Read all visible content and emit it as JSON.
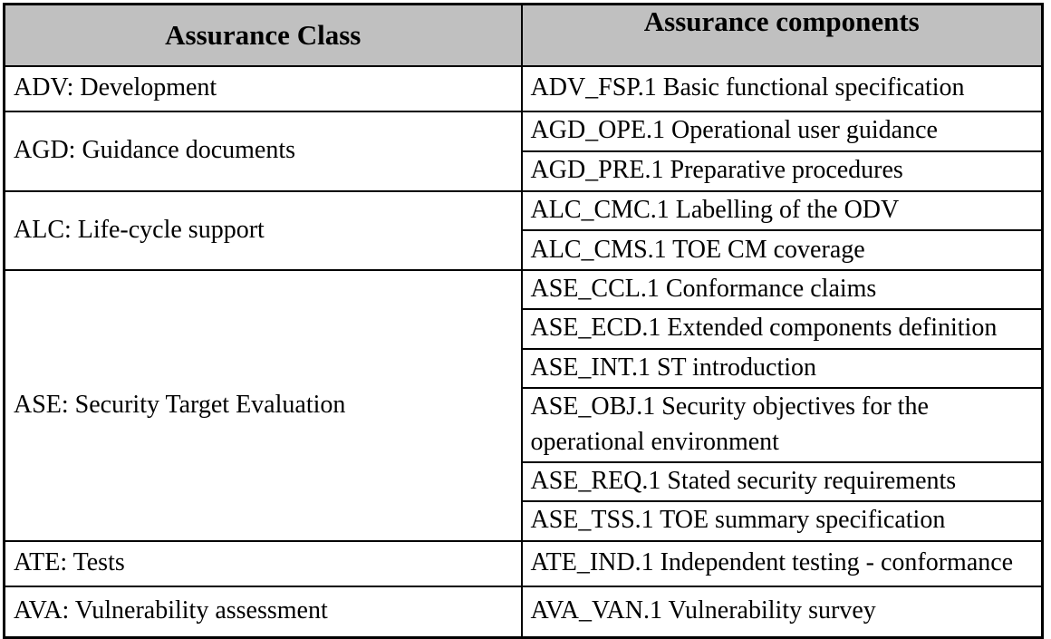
{
  "table": {
    "headers": {
      "assurance_class": "Assurance Class",
      "assurance_components": "Assurance components"
    },
    "groups": [
      {
        "class": "ADV: Development",
        "components": [
          "ADV_FSP.1 Basic functional specification"
        ]
      },
      {
        "class": "AGD: Guidance documents",
        "components": [
          "AGD_OPE.1 Operational user guidance",
          "AGD_PRE.1 Preparative procedures"
        ]
      },
      {
        "class": "ALC: Life-cycle support",
        "components": [
          "ALC_CMC.1 Labelling of the ODV",
          "ALC_CMS.1 TOE CM coverage"
        ]
      },
      {
        "class": "ASE: Security Target Evaluation",
        "components": [
          "ASE_CCL.1 Conformance claims",
          "ASE_ECD.1 Extended components definition",
          "ASE_INT.1 ST introduction",
          "ASE_OBJ.1  Security objectives for the operational environment",
          "ASE_REQ.1 Stated security requirements",
          "ASE_TSS.1 TOE summary specification"
        ]
      },
      {
        "class": "ATE: Tests",
        "components": [
          "ATE_IND.1 Independent testing - conformance"
        ]
      },
      {
        "class": "AVA: Vulnerability assessment",
        "components": [
          "AVA_VAN.1 Vulnerability survey"
        ]
      }
    ],
    "colors": {
      "header_bg": "#c0c0c0",
      "border": "#000000",
      "text": "#000000"
    }
  }
}
